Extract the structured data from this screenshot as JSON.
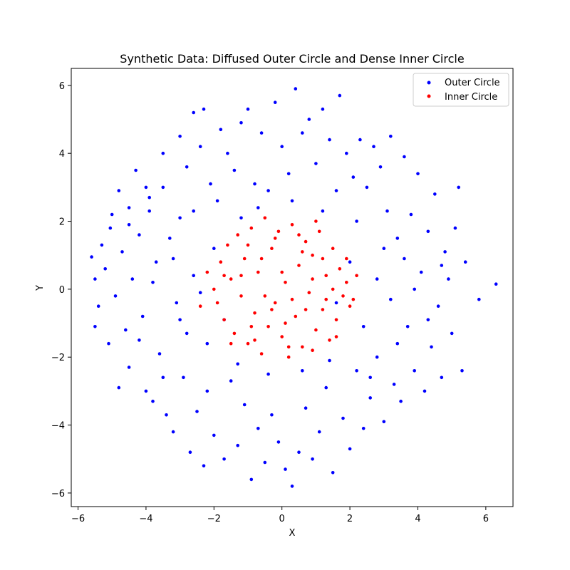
{
  "chart_data": {
    "type": "scatter",
    "title": "Synthetic Data: Diffused Outer Circle and Dense Inner Circle",
    "xlabel": "X",
    "ylabel": "Y",
    "xlim": [
      -6.2,
      6.8
    ],
    "ylim": [
      -6.4,
      6.5
    ],
    "xticks": [
      -6,
      -4,
      -2,
      0,
      2,
      4,
      6
    ],
    "yticks": [
      -6,
      -4,
      -2,
      0,
      2,
      4,
      6
    ],
    "xtick_labels": [
      "−6",
      "−4",
      "−2",
      "0",
      "2",
      "4",
      "6"
    ],
    "ytick_labels": [
      "−6",
      "−4",
      "−2",
      "0",
      "2",
      "4",
      "6"
    ],
    "grid": false,
    "legend_position": "top-right",
    "series": [
      {
        "name": "Outer Circle",
        "color": "#0000ff",
        "points": [
          [
            -5.6,
            0.95
          ],
          [
            -5.5,
            0.3
          ],
          [
            -5.5,
            -1.1
          ],
          [
            -5.4,
            -0.5
          ],
          [
            -5.3,
            1.3
          ],
          [
            -5.2,
            0.6
          ],
          [
            -5.1,
            -1.6
          ],
          [
            -5.05,
            1.8
          ],
          [
            -5.0,
            2.2
          ],
          [
            -4.9,
            -0.2
          ],
          [
            -4.8,
            2.9
          ],
          [
            -4.8,
            -2.9
          ],
          [
            -4.7,
            1.1
          ],
          [
            -4.6,
            -1.2
          ],
          [
            -4.5,
            -2.3
          ],
          [
            -4.5,
            2.4
          ],
          [
            -4.4,
            0.3
          ],
          [
            -4.3,
            3.5
          ],
          [
            -4.2,
            1.6
          ],
          [
            -4.1,
            -0.8
          ],
          [
            -4.0,
            3.0
          ],
          [
            -4.0,
            -3.0
          ],
          [
            -3.9,
            2.3
          ],
          [
            -3.8,
            -3.3
          ],
          [
            -3.7,
            0.8
          ],
          [
            -3.6,
            -1.9
          ],
          [
            -3.5,
            4.0
          ],
          [
            -3.5,
            3.0
          ],
          [
            -3.4,
            -3.7
          ],
          [
            -3.3,
            1.5
          ],
          [
            -3.2,
            -4.2
          ],
          [
            -3.1,
            -0.4
          ],
          [
            -3.0,
            4.5
          ],
          [
            -3.0,
            2.1
          ],
          [
            -2.9,
            -2.6
          ],
          [
            -2.8,
            3.6
          ],
          [
            -2.7,
            -4.8
          ],
          [
            -2.6,
            5.2
          ],
          [
            -2.6,
            0.4
          ],
          [
            -2.5,
            -3.6
          ],
          [
            -2.4,
            4.2
          ],
          [
            -2.3,
            5.3
          ],
          [
            -2.3,
            -5.2
          ],
          [
            -2.2,
            -1.6
          ],
          [
            -2.1,
            3.1
          ],
          [
            -2.0,
            -4.3
          ],
          [
            -1.9,
            2.6
          ],
          [
            -1.8,
            4.7
          ],
          [
            -1.7,
            -5.0
          ],
          [
            -1.6,
            4.0
          ],
          [
            -1.5,
            -2.7
          ],
          [
            -1.4,
            3.5
          ],
          [
            -1.3,
            -4.6
          ],
          [
            -1.2,
            4.9
          ],
          [
            -1.1,
            -3.4
          ],
          [
            -1.0,
            5.3
          ],
          [
            -0.9,
            -5.6
          ],
          [
            -0.8,
            3.1
          ],
          [
            -0.7,
            -4.1
          ],
          [
            -0.6,
            4.6
          ],
          [
            -0.5,
            -5.1
          ],
          [
            -0.4,
            2.9
          ],
          [
            -0.3,
            -3.7
          ],
          [
            -0.2,
            5.5
          ],
          [
            -0.1,
            -4.5
          ],
          [
            0.0,
            4.2
          ],
          [
            0.1,
            -5.3
          ],
          [
            0.2,
            3.4
          ],
          [
            0.3,
            -5.8
          ],
          [
            0.4,
            5.9
          ],
          [
            0.5,
            -4.8
          ],
          [
            0.6,
            4.6
          ],
          [
            0.7,
            -3.5
          ],
          [
            0.8,
            5.0
          ],
          [
            0.9,
            -5.0
          ],
          [
            1.0,
            3.7
          ],
          [
            1.1,
            -4.2
          ],
          [
            1.2,
            5.3
          ],
          [
            1.3,
            -2.9
          ],
          [
            1.4,
            4.4
          ],
          [
            1.5,
            -5.4
          ],
          [
            1.6,
            2.9
          ],
          [
            1.7,
            5.7
          ],
          [
            1.8,
            -3.8
          ],
          [
            1.9,
            4.0
          ],
          [
            2.0,
            -4.7
          ],
          [
            2.1,
            3.3
          ],
          [
            2.2,
            -2.4
          ],
          [
            2.3,
            4.4
          ],
          [
            2.4,
            -4.1
          ],
          [
            2.5,
            3.0
          ],
          [
            2.6,
            -3.2
          ],
          [
            2.7,
            4.2
          ],
          [
            2.8,
            -2.0
          ],
          [
            2.9,
            3.6
          ],
          [
            3.0,
            -3.9
          ],
          [
            3.1,
            2.3
          ],
          [
            3.2,
            4.5
          ],
          [
            3.3,
            -2.8
          ],
          [
            3.4,
            1.5
          ],
          [
            3.5,
            -3.3
          ],
          [
            3.6,
            3.9
          ],
          [
            3.7,
            -1.1
          ],
          [
            3.8,
            2.2
          ],
          [
            3.9,
            -2.4
          ],
          [
            4.0,
            3.4
          ],
          [
            4.1,
            0.5
          ],
          [
            4.2,
            -3.0
          ],
          [
            4.3,
            1.7
          ],
          [
            4.4,
            -1.7
          ],
          [
            4.5,
            2.8
          ],
          [
            4.6,
            -0.5
          ],
          [
            4.7,
            -2.6
          ],
          [
            4.8,
            1.1
          ],
          [
            4.9,
            0.3
          ],
          [
            5.0,
            -1.3
          ],
          [
            5.1,
            1.8
          ],
          [
            5.2,
            3.0
          ],
          [
            5.3,
            -2.4
          ],
          [
            5.4,
            0.8
          ],
          [
            5.8,
            -0.3
          ],
          [
            6.3,
            0.15
          ],
          [
            -3.8,
            0.2
          ],
          [
            -3.2,
            0.9
          ],
          [
            -2.8,
            -1.3
          ],
          [
            -2.4,
            -0.1
          ],
          [
            -2.0,
            1.2
          ],
          [
            -1.7,
            -0.9
          ],
          [
            1.6,
            -0.4
          ],
          [
            2.0,
            0.8
          ],
          [
            2.4,
            -1.1
          ],
          [
            2.8,
            0.3
          ],
          [
            3.2,
            -0.3
          ],
          [
            3.6,
            0.9
          ],
          [
            -1.2,
            2.1
          ],
          [
            -0.7,
            2.4
          ],
          [
            0.3,
            2.6
          ],
          [
            1.2,
            2.3
          ],
          [
            -1.3,
            -2.2
          ],
          [
            -0.4,
            -2.5
          ],
          [
            0.6,
            -2.4
          ],
          [
            1.4,
            -2.1
          ],
          [
            -4.5,
            1.9
          ],
          [
            -4.2,
            -1.5
          ],
          [
            -3.9,
            2.7
          ],
          [
            -3.5,
            -2.6
          ],
          [
            -3.0,
            -0.9
          ],
          [
            -2.6,
            2.3
          ],
          [
            -2.2,
            -3.0
          ],
          [
            2.2,
            2.0
          ],
          [
            2.6,
            -2.6
          ],
          [
            3.0,
            1.2
          ],
          [
            3.4,
            -1.6
          ],
          [
            3.9,
            0.0
          ],
          [
            4.3,
            -0.9
          ],
          [
            4.7,
            0.7
          ]
        ]
      },
      {
        "name": "Inner Circle",
        "color": "#ff0000",
        "points": [
          [
            -2.4,
            -0.5
          ],
          [
            -2.2,
            0.5
          ],
          [
            -2.0,
            0.0
          ],
          [
            -1.9,
            -0.4
          ],
          [
            -1.8,
            0.8
          ],
          [
            -1.7,
            -0.9
          ],
          [
            -1.6,
            1.3
          ],
          [
            -1.5,
            0.3
          ],
          [
            -1.4,
            -1.3
          ],
          [
            -1.3,
            1.6
          ],
          [
            -1.2,
            -0.2
          ],
          [
            -1.1,
            0.9
          ],
          [
            -1.0,
            -1.6
          ],
          [
            -0.9,
            1.8
          ],
          [
            -0.8,
            -0.7
          ],
          [
            -0.7,
            0.5
          ],
          [
            -0.6,
            -1.9
          ],
          [
            -0.5,
            2.1
          ],
          [
            -0.4,
            -1.1
          ],
          [
            -0.3,
            1.2
          ],
          [
            -0.2,
            -0.4
          ],
          [
            -0.1,
            1.7
          ],
          [
            0.0,
            -1.4
          ],
          [
            0.1,
            0.2
          ],
          [
            0.2,
            -2.0
          ],
          [
            0.3,
            1.9
          ],
          [
            0.4,
            -0.8
          ],
          [
            0.5,
            0.7
          ],
          [
            0.6,
            -1.7
          ],
          [
            0.7,
            1.4
          ],
          [
            0.8,
            -0.1
          ],
          [
            0.9,
            1.0
          ],
          [
            1.0,
            -1.2
          ],
          [
            1.1,
            1.7
          ],
          [
            1.2,
            -0.6
          ],
          [
            1.3,
            0.4
          ],
          [
            1.4,
            -1.5
          ],
          [
            1.5,
            1.2
          ],
          [
            1.6,
            -0.9
          ],
          [
            1.7,
            0.6
          ],
          [
            1.8,
            -0.2
          ],
          [
            1.9,
            0.9
          ],
          [
            2.0,
            -0.5
          ],
          [
            2.1,
            -0.3
          ],
          [
            2.2,
            0.4
          ],
          [
            -1.5,
            -1.6
          ],
          [
            -0.9,
            -1.1
          ],
          [
            -0.3,
            -0.6
          ],
          [
            0.3,
            -0.3
          ],
          [
            0.9,
            0.3
          ],
          [
            1.5,
            0.0
          ],
          [
            -1.2,
            0.4
          ],
          [
            -0.6,
            0.9
          ],
          [
            0.0,
            0.5
          ],
          [
            0.6,
            1.1
          ],
          [
            1.2,
            0.9
          ],
          [
            -0.5,
            -0.2
          ],
          [
            0.1,
            -1.0
          ],
          [
            0.7,
            -0.6
          ],
          [
            1.3,
            -0.3
          ],
          [
            -1.0,
            1.3
          ],
          [
            -0.2,
            1.5
          ],
          [
            0.5,
            1.6
          ],
          [
            1.0,
            2.0
          ],
          [
            -0.8,
            -1.5
          ],
          [
            0.2,
            -1.7
          ],
          [
            0.9,
            -1.8
          ],
          [
            1.6,
            -1.4
          ],
          [
            -1.7,
            0.4
          ],
          [
            1.9,
            0.2
          ]
        ]
      }
    ]
  }
}
